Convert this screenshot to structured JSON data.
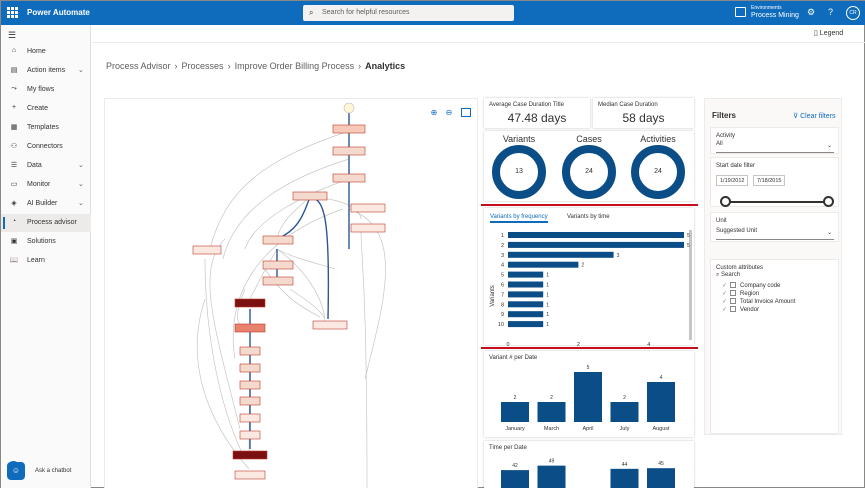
{
  "topbar": {
    "app_title": "Power Automate",
    "search_placeholder": "Search for helpful resources",
    "env_label": "Environments",
    "env_name": "Process Mining",
    "avatar_initials": "CR"
  },
  "nav": {
    "items": [
      {
        "label": "Home",
        "icon": "home-icon",
        "glyph": "⌂",
        "chevron": false
      },
      {
        "label": "Action items",
        "icon": "clipboard-icon",
        "glyph": "▤",
        "chevron": true
      },
      {
        "label": "My flows",
        "icon": "flow-icon",
        "glyph": "⤳",
        "chevron": false
      },
      {
        "label": "Create",
        "icon": "plus-icon",
        "glyph": "+",
        "chevron": false
      },
      {
        "label": "Templates",
        "icon": "templates-icon",
        "glyph": "▦",
        "chevron": false
      },
      {
        "label": "Connectors",
        "icon": "connector-icon",
        "glyph": "⚇",
        "chevron": false
      },
      {
        "label": "Data",
        "icon": "database-icon",
        "glyph": "☰",
        "chevron": true
      },
      {
        "label": "Monitor",
        "icon": "monitor-icon",
        "glyph": "▭",
        "chevron": true
      },
      {
        "label": "AI Builder",
        "icon": "ai-builder-icon",
        "glyph": "◈",
        "chevron": true
      },
      {
        "label": "Process advisor",
        "icon": "process-advisor-icon",
        "glyph": "◔",
        "chevron": false,
        "active": true
      },
      {
        "label": "Solutions",
        "icon": "solutions-icon",
        "glyph": "▣",
        "chevron": false
      },
      {
        "label": "Learn",
        "icon": "book-icon",
        "glyph": "📖",
        "chevron": false
      }
    ],
    "chatbot_label": "Ask a chatbot"
  },
  "command_bar": {
    "legend_label": "Legend"
  },
  "breadcrumb": {
    "items": [
      "Process Advisor",
      "Processes",
      "Improve Order Billing Process"
    ],
    "current": "Analytics"
  },
  "kpis": {
    "avg_label": "Average Case Duration Title",
    "avg_value": "47.48 days",
    "median_label": "Median Case Duration",
    "median_value": "58 days"
  },
  "donuts": [
    {
      "label": "Variants",
      "value": "13"
    },
    {
      "label": "Cases",
      "value": "24"
    },
    {
      "label": "Activities",
      "value": "24"
    }
  ],
  "variants_chart": {
    "tab_frequency": "Variants by frequency",
    "tab_time": "Variants by time",
    "ylabel": "Variants"
  },
  "variant_date_chart": {
    "title": "Variant # per Date"
  },
  "time_date_chart": {
    "title": "Time per Date"
  },
  "filters": {
    "title": "Filters",
    "clear_label": "Clear filters",
    "activity_label": "Activity",
    "activity_value": "All",
    "start_date_label": "Start date filter",
    "start_date_from": "1/19/2012",
    "start_date_to": "7/18/2015",
    "unit_label": "Unit",
    "unit_value": "Suggested Unit",
    "custom_attr_label": "Custom attributes",
    "attr_search_placeholder": "Search",
    "attributes": [
      "Company code",
      "Region",
      "Total Invoice Amount",
      "Vendor"
    ]
  },
  "chart_data": [
    {
      "type": "bar",
      "orientation": "horizontal",
      "categories": [
        "1",
        "2",
        "3",
        "4",
        "5",
        "6",
        "7",
        "8",
        "9",
        "10"
      ],
      "values": [
        5,
        5,
        3,
        2,
        1,
        1,
        1,
        1,
        1,
        1
      ],
      "xlim": [
        0,
        5
      ],
      "xticks": [
        "0",
        "2",
        "4"
      ],
      "ylabel": "Variants",
      "color": "#0b4d86"
    },
    {
      "type": "bar",
      "title": "Variant # per Date",
      "categories": [
        "January",
        "March",
        "April",
        "July",
        "August"
      ],
      "values": [
        2,
        2,
        5,
        2,
        4
      ],
      "ylim": [
        0,
        5
      ],
      "color": "#0b4d86"
    },
    {
      "type": "bar",
      "title": "Time per Date",
      "categories": [
        "",
        "",
        "",
        "",
        ""
      ],
      "values": [
        42,
        49,
        0,
        44,
        45
      ],
      "value_labels": [
        "42",
        "49",
        "",
        "44",
        "45"
      ],
      "ylim": [
        0,
        50
      ],
      "color": "#0b4d86"
    }
  ]
}
